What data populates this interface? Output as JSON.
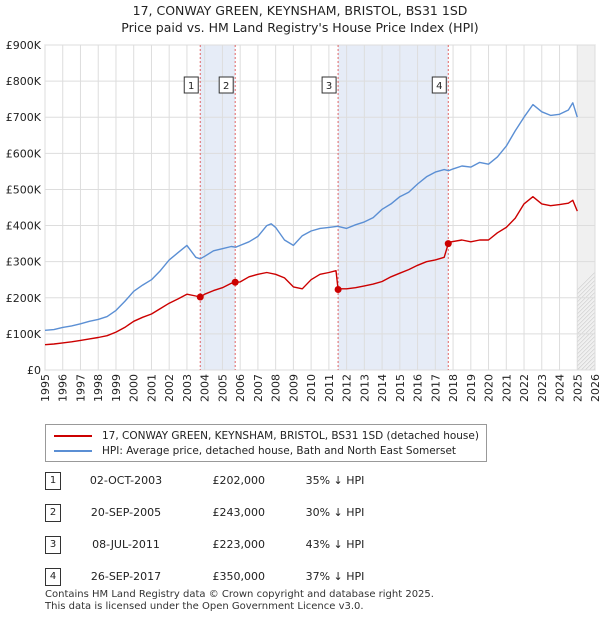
{
  "title": {
    "line1": "17, CONWAY GREEN, KEYNSHAM, BRISTOL, BS31 1SD",
    "line2": "Price paid vs. HM Land Registry's House Price Index (HPI)"
  },
  "colors": {
    "property": "#cc0000",
    "hpi": "#5b8fd4",
    "shade": "#e6ecf7",
    "vline": "#e06666"
  },
  "legend": {
    "property_label": "17, CONWAY GREEN, KEYNSHAM, BRISTOL, BS31 1SD (detached house)",
    "hpi_label": "HPI: Average price, detached house, Bath and North East Somerset"
  },
  "chart_data": {
    "type": "line",
    "title": "Price paid vs. HM Land Registry's House Price Index (HPI)",
    "xlim": [
      1995,
      2026
    ],
    "ylim": [
      0,
      900000
    ],
    "y_ticks": [
      0,
      100000,
      200000,
      300000,
      400000,
      500000,
      600000,
      700000,
      800000,
      900000
    ],
    "y_tick_labels": [
      "£0",
      "£100K",
      "£200K",
      "£300K",
      "£400K",
      "£500K",
      "£600K",
      "£700K",
      "£800K",
      "£900K"
    ],
    "x_ticks": [
      "1995",
      "1996",
      "1997",
      "1998",
      "1999",
      "2000",
      "2001",
      "2002",
      "2003",
      "2004",
      "2005",
      "2006",
      "2007",
      "2008",
      "2009",
      "2010",
      "2011",
      "2012",
      "2013",
      "2014",
      "2015",
      "2016",
      "2017",
      "2018",
      "2019",
      "2020",
      "2021",
      "2022",
      "2023",
      "2024",
      "2025",
      "2026"
    ],
    "forecast_start": 2025.0,
    "series": [
      {
        "name": "HPI: Average price, detached house, Bath and North East Somerset",
        "key": "hpi",
        "x": [
          1995.0,
          1995.5,
          1996.0,
          1996.5,
          1997.0,
          1997.5,
          1998.0,
          1998.5,
          1999.0,
          1999.5,
          2000.0,
          2000.5,
          2001.0,
          2001.5,
          2002.0,
          2002.5,
          2003.0,
          2003.5,
          2003.75,
          2004.0,
          2004.5,
          2005.0,
          2005.5,
          2005.75,
          2006.0,
          2006.5,
          2007.0,
          2007.5,
          2007.75,
          2008.0,
          2008.5,
          2009.0,
          2009.5,
          2010.0,
          2010.5,
          2011.0,
          2011.5,
          2012.0,
          2012.5,
          2013.0,
          2013.5,
          2014.0,
          2014.5,
          2015.0,
          2015.5,
          2016.0,
          2016.5,
          2017.0,
          2017.5,
          2017.75,
          2018.0,
          2018.5,
          2019.0,
          2019.5,
          2020.0,
          2020.5,
          2021.0,
          2021.5,
          2022.0,
          2022.5,
          2023.0,
          2023.5,
          2024.0,
          2024.5,
          2024.75,
          2025.0
        ],
        "values": [
          110000,
          112000,
          118000,
          122000,
          128000,
          135000,
          140000,
          148000,
          165000,
          190000,
          218000,
          235000,
          250000,
          275000,
          305000,
          325000,
          345000,
          312000,
          308000,
          315000,
          330000,
          336000,
          342000,
          340000,
          345000,
          355000,
          370000,
          400000,
          405000,
          395000,
          360000,
          345000,
          372000,
          385000,
          392000,
          395000,
          398000,
          392000,
          402000,
          410000,
          422000,
          445000,
          460000,
          480000,
          492000,
          515000,
          535000,
          548000,
          555000,
          552000,
          557000,
          565000,
          562000,
          575000,
          570000,
          590000,
          620000,
          662000,
          700000,
          735000,
          715000,
          705000,
          708000,
          720000,
          740000,
          700000
        ]
      },
      {
        "name": "17, CONWAY GREEN, KEYNSHAM, BRISTOL, BS31 1SD (detached house)",
        "key": "property",
        "x": [
          1995.0,
          1995.5,
          1996.0,
          1996.5,
          1997.0,
          1997.5,
          1998.0,
          1998.5,
          1999.0,
          1999.5,
          2000.0,
          2000.5,
          2001.0,
          2001.5,
          2002.0,
          2002.5,
          2003.0,
          2003.5,
          2003.75,
          2004.0,
          2004.5,
          2005.0,
          2005.5,
          2005.72,
          2006.0,
          2006.5,
          2007.0,
          2007.5,
          2008.0,
          2008.5,
          2009.0,
          2009.5,
          2010.0,
          2010.5,
          2011.0,
          2011.4,
          2011.52,
          2011.7,
          2012.0,
          2012.5,
          2013.0,
          2013.5,
          2014.0,
          2014.5,
          2015.0,
          2015.5,
          2016.0,
          2016.5,
          2017.0,
          2017.5,
          2017.73,
          2017.9,
          2018.5,
          2019.0,
          2019.5,
          2020.0,
          2020.5,
          2021.0,
          2021.5,
          2022.0,
          2022.5,
          2023.0,
          2023.5,
          2024.0,
          2024.5,
          2024.75,
          2025.0
        ],
        "values": [
          70000,
          72000,
          75000,
          78000,
          82000,
          86000,
          90000,
          95000,
          105000,
          118000,
          135000,
          146000,
          155000,
          170000,
          185000,
          197000,
          210000,
          205000,
          202000,
          210000,
          220000,
          228000,
          240000,
          243000,
          244000,
          258000,
          265000,
          270000,
          265000,
          255000,
          230000,
          225000,
          250000,
          265000,
          270000,
          275000,
          223000,
          225000,
          225000,
          228000,
          233000,
          238000,
          245000,
          258000,
          268000,
          278000,
          290000,
          300000,
          305000,
          312000,
          350000,
          355000,
          360000,
          355000,
          360000,
          360000,
          380000,
          395000,
          420000,
          460000,
          480000,
          460000,
          455000,
          458000,
          462000,
          470000,
          440000
        ]
      }
    ],
    "sales": [
      {
        "num": "1",
        "x": 2003.75,
        "value": 202000,
        "date": "02-OCT-2003",
        "price": "£202,000",
        "hpi": "35% ↓ HPI"
      },
      {
        "num": "2",
        "x": 2005.72,
        "value": 243000,
        "date": "20-SEP-2005",
        "price": "£243,000",
        "hpi": "30% ↓ HPI"
      },
      {
        "num": "3",
        "x": 2011.52,
        "value": 223000,
        "date": "08-JUL-2011",
        "price": "£223,000",
        "hpi": "43% ↓ HPI"
      },
      {
        "num": "4",
        "x": 2017.73,
        "value": 350000,
        "date": "26-SEP-2017",
        "price": "£350,000",
        "hpi": "37% ↓ HPI"
      }
    ]
  },
  "footer": {
    "line1": "Contains HM Land Registry data © Crown copyright and database right 2025.",
    "line2": "This data is licensed under the Open Government Licence v3.0."
  }
}
